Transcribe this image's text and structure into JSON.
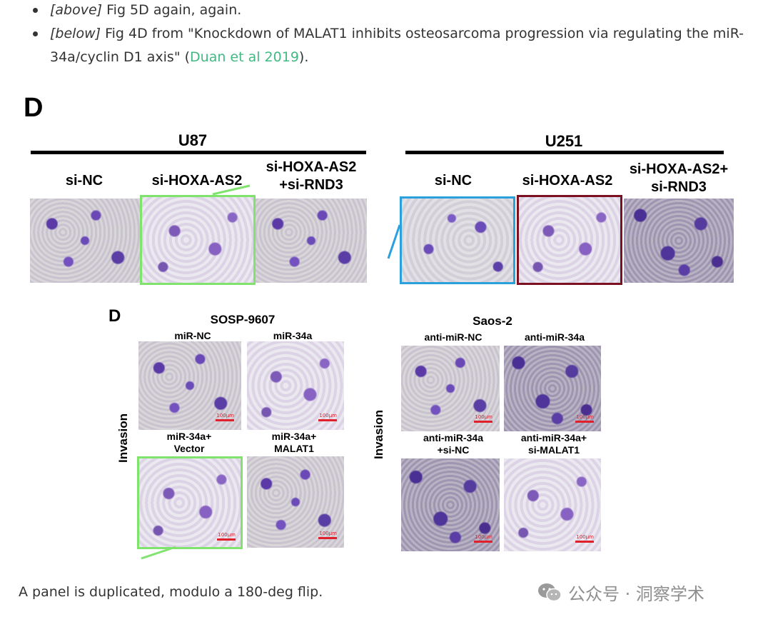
{
  "bullets": [
    {
      "tag": "[above]",
      "text": " Fig 5D again, again."
    },
    {
      "tag": "[below]",
      "text_before": " Fig 4D from \"Knockdown of MALAT1 inhibits osteosarcoma progression via regulating the miR-34a/cyclin D1 axis\" (",
      "link": "Duan et al 2019",
      "text_after": ")."
    }
  ],
  "figure_top": {
    "panel_letter": "D",
    "groups": [
      {
        "title": "U87",
        "columns": [
          "si-NC",
          "si-HOXA-AS2",
          "si-HOXA-AS2\n+si-RND3"
        ]
      },
      {
        "title": "U251",
        "columns": [
          "si-NC",
          "si-HOXA-AS2",
          "si-HOXA-AS2+\nsi-RND3"
        ]
      }
    ]
  },
  "figure_bottom": {
    "panel_letter": "D",
    "row_label": "Invasion",
    "groups": [
      {
        "title": "SOSP-9607",
        "labels": [
          "miR-NC",
          "miR-34a",
          "miR-34a+\nVector",
          "miR-34a+\nMALAT1"
        ]
      },
      {
        "title": "Saos-2",
        "labels": [
          "anti-miR-NC",
          "anti-miR-34a",
          "anti-miR-34a\n+si-NC",
          "anti-miR-34a+\nsi-MALAT1"
        ]
      }
    ],
    "scalebar_text": "100μm"
  },
  "caption": "A panel is duplicated, modulo a 180-deg flip.",
  "watermark": "公众号 · 洞察学术",
  "colors": {
    "highlight_green": "#7fe36e",
    "highlight_blue": "#2aa1dd",
    "highlight_red": "#7a1020",
    "link": "#42b983"
  }
}
